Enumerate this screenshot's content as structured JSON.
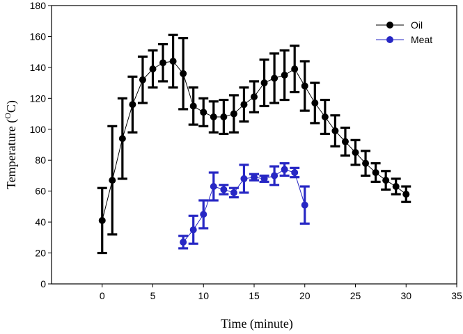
{
  "chart_data": {
    "type": "line",
    "title": "",
    "xlabel": "Time (minute)",
    "ylabel": {
      "prefix": "Temperature (",
      "superscript": "O",
      "suffix": "C)"
    },
    "xlim": [
      -5,
      35
    ],
    "ylim": [
      0,
      180
    ],
    "xticks": [
      "0",
      "5",
      "10",
      "15",
      "20",
      "25",
      "30",
      "35"
    ],
    "yticks": [
      "0",
      "20",
      "40",
      "60",
      "80",
      "100",
      "120",
      "140",
      "160",
      "180"
    ],
    "grid": false,
    "legend_position": "top-right",
    "series": [
      {
        "name": "Oil",
        "color": "#000000",
        "x": [
          0,
          1,
          2,
          3,
          4,
          5,
          6,
          7,
          8,
          9,
          10,
          11,
          12,
          13,
          14,
          15,
          16,
          17,
          18,
          19,
          20,
          21,
          22,
          23,
          24,
          25,
          26,
          27,
          28,
          29,
          30
        ],
        "y": [
          41,
          67,
          94,
          116,
          132,
          139,
          143,
          144,
          136,
          115,
          111,
          108,
          108,
          110,
          116,
          121,
          130,
          133,
          135,
          139,
          128,
          117,
          108,
          99,
          92,
          85,
          78,
          72,
          67,
          63,
          58
        ],
        "err": [
          21,
          35,
          26,
          18,
          15,
          12,
          12,
          17,
          23,
          12,
          9,
          10,
          11,
          12,
          11,
          10,
          15,
          16,
          16,
          15,
          16,
          13,
          11,
          10,
          9,
          8,
          8,
          6,
          6,
          5,
          5
        ]
      },
      {
        "name": "Meat",
        "color": "#2727c4",
        "x": [
          8,
          9,
          10,
          11,
          12,
          13,
          14,
          15,
          16,
          17,
          18,
          19,
          20
        ],
        "y": [
          27,
          35,
          45,
          63,
          61,
          59,
          68,
          69,
          68,
          70,
          74,
          72,
          51
        ],
        "err": [
          4,
          9,
          9,
          9,
          3,
          3,
          9,
          2,
          2,
          6,
          4,
          3,
          12
        ]
      }
    ]
  }
}
